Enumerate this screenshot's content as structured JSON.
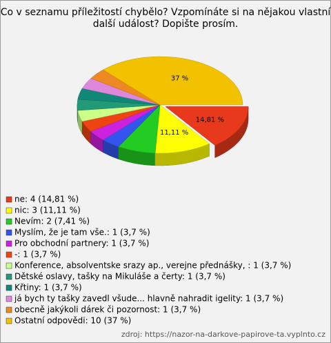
{
  "chart_data": {
    "type": "pie",
    "title": [
      "Co v seznamu příležitostí chybělo? Vzpomínáte si na nějakou vlastní",
      "další událost? Dopište prosím."
    ],
    "categories": [
      "ne: 4 (14,81 %)",
      "nic: 3 (11,11 %)",
      "Nevím: 2 (7,41 %)",
      "Myslím, že je tam vše.: 1 (3,7 %)",
      "Pro obchodní partnery: 1 (3,7 %)",
      "-: 1 (3,7 %)",
      "Konference, absolventske srazy ap., verejne přednášky, : 1 (3,7 %)",
      "Dětské oslavy, tašky na Mikuláše a čerty: 1 (3,7 %)",
      "Křtiny: 1 (3,7 %)",
      "já bych ty tašky zavedl všude... hlavně nahradit igelity: 1 (3,7 %)",
      "obecně jakýkoli dárek či pozornost: 1 (3,7 %)",
      "Ostatní odpovědi: 10 (37 %)"
    ],
    "values": [
      14.81,
      11.11,
      7.41,
      3.7,
      3.7,
      3.7,
      3.7,
      3.7,
      3.7,
      3.7,
      3.7,
      37
    ],
    "value_labels": [
      "14,81 %",
      "11,11 %",
      null,
      null,
      null,
      null,
      null,
      null,
      null,
      null,
      null,
      "37 %"
    ],
    "colors": [
      "#e8391c",
      "#ffff00",
      "#22cc22",
      "#3355ee",
      "#cc22dd",
      "#ee4411",
      "#ccff88",
      "#229977",
      "#118877",
      "#dd88dd",
      "#ee8822",
      "#f2c200"
    ],
    "exploded": [
      0
    ],
    "source": "zdroj: https://nazor-na-darkove-papirove-ta.vyplnto.cz"
  }
}
